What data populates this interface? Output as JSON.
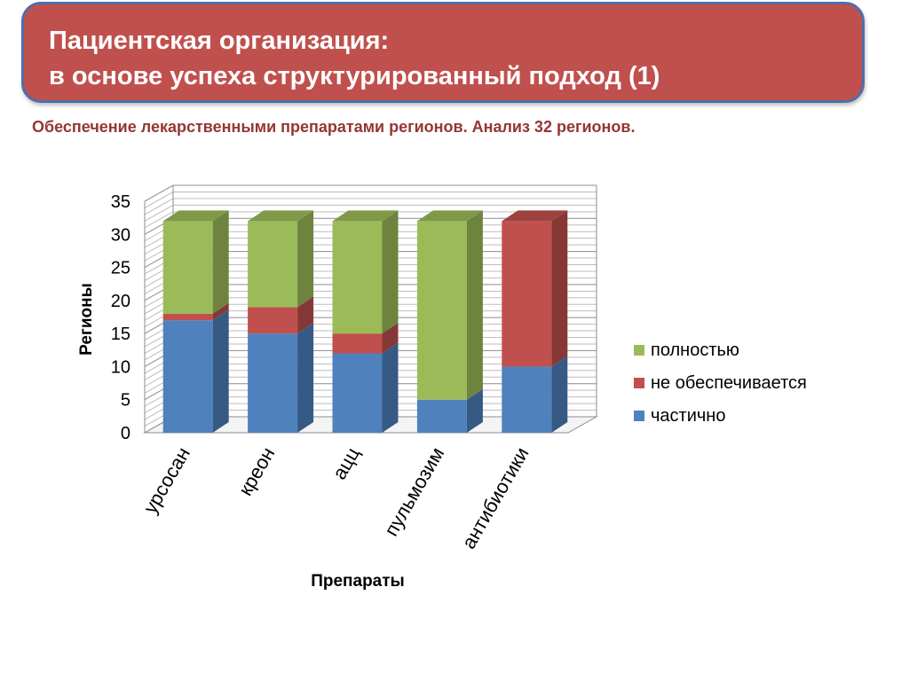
{
  "header": {
    "title_line1": "Пациентская организация:",
    "title_line2": "в основе успеха структурированный подход (1)",
    "subtitle": "Обеспечение лекарственными препаратами регионов. Анализ 32 регионов."
  },
  "colors": {
    "header_bg": "#c0504d",
    "header_border": "#4f6ea8",
    "subtitle_text": "#943634"
  },
  "chart_data": {
    "type": "bar",
    "stacked": true,
    "view": "3d-column",
    "categories": [
      "урсосан",
      "креон",
      "ацц",
      "пульмозим",
      "антибиотики"
    ],
    "series": [
      {
        "name": "частично",
        "color": "#4f81bd",
        "values": [
          17,
          15,
          12,
          5,
          10
        ]
      },
      {
        "name": "не обеспечивается",
        "color": "#c0504d",
        "values": [
          1,
          4,
          3,
          0,
          22
        ]
      },
      {
        "name": "полностью",
        "color": "#9bbb59",
        "values": [
          14,
          13,
          17,
          27,
          0
        ]
      }
    ],
    "legend_order": [
      "полностью",
      "не обеспечивается",
      "частично"
    ],
    "xlabel": "Препараты",
    "ylabel": "Регионы",
    "ylim": [
      0,
      35
    ],
    "yticks": [
      0,
      5,
      10,
      15,
      20,
      25,
      30,
      35
    ],
    "grid": true,
    "legend_position": "right"
  }
}
